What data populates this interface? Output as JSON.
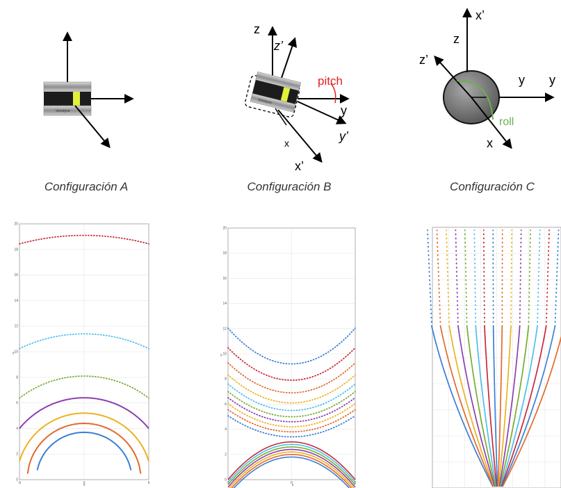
{
  "colors": {
    "blue": "#3a7fd5",
    "orange": "#e2692b",
    "yellow": "#edb120",
    "purple": "#8a3fb0",
    "green": "#77ac30",
    "cyan": "#4dbeee",
    "red": "#c8283a",
    "pitch": "#e02020",
    "roll": "#6ab04c"
  },
  "configs": {
    "a": {
      "caption": "Configuración A",
      "sensor_text": "Velodyne"
    },
    "b": {
      "caption": "Configuración B",
      "labels": {
        "z": "z",
        "z_prime": "z’",
        "y": "y",
        "y_prime": "y’",
        "x": "x",
        "x_prime": "x’",
        "pitch": "pitch"
      },
      "sensor_text": "Velodyne"
    },
    "c": {
      "caption": "Configuración C",
      "labels": {
        "x_prime": "x’",
        "z": "z",
        "z_prime": "z’",
        "y1": "y",
        "y2": "y",
        "roll": "roll",
        "x": "x"
      }
    }
  },
  "plots": {
    "a": {
      "ytick_labels": [
        "0",
        "2",
        "4",
        "6",
        "8",
        "10",
        "12",
        "14",
        "16",
        "18",
        "20"
      ],
      "xtick_labels": [
        "-5",
        "0",
        "5"
      ],
      "ylabel": "y",
      "xlabel": "x"
    },
    "b": {
      "ytick_labels": [
        "0",
        "2",
        "4",
        "6",
        "8",
        "10",
        "12",
        "14",
        "16",
        "18",
        "20"
      ],
      "xtick_labels": [
        "-5",
        "0",
        "5"
      ],
      "ylabel": "y",
      "xlabel": "x"
    },
    "c": {}
  },
  "chart_data": [
    {
      "type": "line",
      "series": [
        {
          "r": 3.7,
          "color": "blue",
          "style": "solid"
        },
        {
          "r": 4.4,
          "color": "orange",
          "style": "solid"
        },
        {
          "r": 5.2,
          "color": "yellow",
          "style": "solid"
        },
        {
          "r": 6.4,
          "color": "purple",
          "style": "solid"
        },
        {
          "r": 8.1,
          "color": "green",
          "style": "dotted"
        },
        {
          "r": 11.4,
          "color": "cyan",
          "style": "dotted"
        },
        {
          "r": 19.1,
          "color": "red",
          "style": "dotted"
        }
      ],
      "xlim": [
        -5,
        5
      ],
      "ylim": [
        0,
        20
      ],
      "grid": true
    },
    {
      "type": "line",
      "lower_series": [
        {
          "min": 1.8,
          "color": "blue"
        },
        {
          "min": 2.0,
          "color": "orange"
        },
        {
          "min": 2.2,
          "color": "yellow"
        },
        {
          "min": 2.4,
          "color": "purple"
        },
        {
          "min": 2.6,
          "color": "green"
        },
        {
          "min": 2.8,
          "color": "cyan"
        },
        {
          "min": 3.0,
          "color": "red"
        }
      ],
      "upper_series": [
        {
          "min": 3.4,
          "color": "blue"
        },
        {
          "min": 3.8,
          "color": "orange"
        },
        {
          "min": 4.2,
          "color": "yellow"
        },
        {
          "min": 4.6,
          "color": "purple"
        },
        {
          "min": 5.0,
          "color": "green"
        },
        {
          "min": 5.5,
          "color": "cyan"
        },
        {
          "min": 6.1,
          "color": "yellow"
        },
        {
          "min": 6.9,
          "color": "orange"
        },
        {
          "min": 7.9,
          "color": "red"
        },
        {
          "min": 9.2,
          "color": "blue"
        }
      ],
      "xlim": [
        -5,
        5
      ],
      "ylim": [
        0,
        20
      ],
      "grid": true
    },
    {
      "type": "line",
      "fan_color_order": [
        "blue",
        "orange",
        "yellow",
        "purple",
        "green",
        "cyan",
        "red"
      ],
      "fan_line_count": 16,
      "grid": true
    }
  ]
}
